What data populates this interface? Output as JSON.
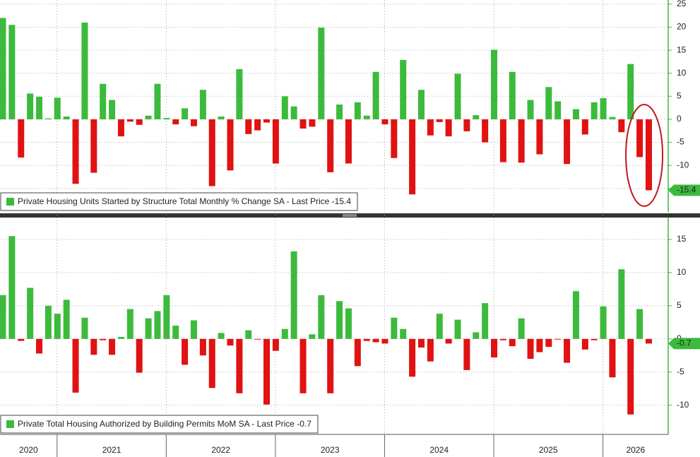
{
  "chart_data": [
    {
      "type": "bar",
      "legend": "Private Housing Units Started by Structure Total Monthly % Change SA - Last Price -15.4",
      "positive_color": "#3cba3c",
      "negative_color": "#e01212",
      "grid": true,
      "ylim": [
        -20.1,
        25.9
      ],
      "yticks": [
        25,
        20,
        15,
        10,
        5,
        0,
        -5,
        -10,
        -15
      ],
      "values": [
        22,
        20.5,
        -8.3,
        5.6,
        4.9,
        0.2,
        4.7,
        0.6,
        -14,
        21,
        -11.6,
        7.7,
        4.2,
        -3.7,
        -0.5,
        -1.2,
        0.8,
        7.7,
        0.3,
        -1.1,
        2.4,
        -1.5,
        6.4,
        -14.5,
        0.6,
        -11.1,
        10.9,
        -3.2,
        -2.4,
        -0.7,
        -9.6,
        5,
        2.8,
        -2,
        -1.6,
        19.9,
        -11.5,
        3.2,
        -9.6,
        3.7,
        0.8,
        10.3,
        -1.1,
        -8.4,
        12.9,
        -16.3,
        6.4,
        -3.5,
        -0.6,
        -3.7,
        9.9,
        -2.6,
        0.9,
        -5,
        15.1,
        -9.3,
        10.3,
        -9.4,
        4.2,
        -7.6,
        7,
        3.9,
        -9.7,
        2.2,
        -3.3,
        3.7,
        4.6,
        0.5,
        -2.8,
        12,
        -8.2,
        -15.4
      ]
    },
    {
      "type": "bar",
      "legend": "Private Total Housing Authorized by Building Permits MoM SA - Last Price -0.7",
      "positive_color": "#3cba3c",
      "negative_color": "#e01212",
      "grid": true,
      "ylim": [
        -14.4,
        18.3
      ],
      "yticks": [
        15,
        10,
        5,
        0,
        -5,
        -10
      ],
      "values": [
        6.6,
        15.5,
        -0.3,
        7.7,
        -2.2,
        5,
        3.8,
        5.9,
        -8.1,
        3.2,
        -2.4,
        -0.2,
        -2.4,
        0.3,
        4.5,
        -5.1,
        3.1,
        4.2,
        6.6,
        2,
        -3.9,
        2.8,
        -2.5,
        -7.4,
        0.9,
        -1,
        -8.2,
        1.3,
        -0.1,
        -9.9,
        -1.8,
        1.5,
        13.2,
        -8.2,
        0.7,
        6.6,
        -8.2,
        5.7,
        4.6,
        -4.1,
        -0.3,
        -0.5,
        -0.7,
        3.2,
        1.5,
        -5.7,
        -1.3,
        -3.4,
        3.8,
        -0.7,
        2.9,
        -4.7,
        1,
        5.4,
        -2.8,
        -0.2,
        -1.1,
        3.1,
        -3,
        -2,
        -1.2,
        -0.1,
        -3.6,
        7.2,
        -1.6,
        -0.2,
        4.9,
        -5.8,
        10.5,
        -11.4,
        4.5,
        -0.7
      ],
      "years": [
        "2020",
        "2021",
        "2022",
        "2023",
        "2024",
        "2025",
        "2026"
      ]
    }
  ]
}
